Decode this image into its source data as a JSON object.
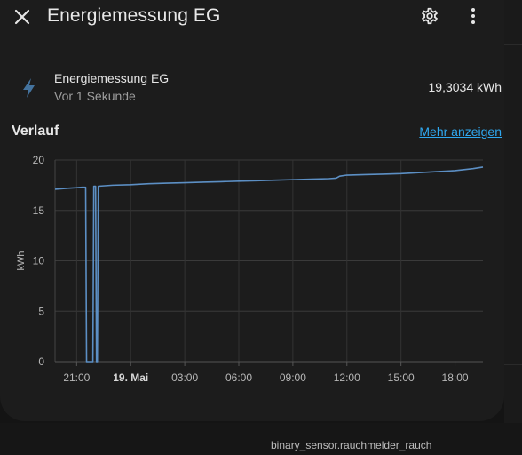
{
  "dialog": {
    "title": "Energiemessung EG",
    "icons": {
      "close": "close-icon",
      "settings": "gear-icon",
      "menu": "more-vertical-icon"
    }
  },
  "entity": {
    "icon": "lightning-bolt-icon",
    "name": "Energiemessung EG",
    "last_changed": "Vor 1 Sekunde",
    "value": "19,3034 kWh"
  },
  "history": {
    "title": "Verlauf",
    "more_link": "Mehr anzeigen"
  },
  "background": {
    "entity_id": "binary_sensor.rauchmelder_rauch"
  },
  "chart_data": {
    "type": "line",
    "ylabel": "kWh",
    "ylim": [
      0,
      20
    ],
    "yticks": [
      "0",
      "5",
      "10",
      "15",
      "20"
    ],
    "xticks": [
      {
        "label": "21:00",
        "h": 21,
        "bold": false
      },
      {
        "label": "19. Mai",
        "h": 24,
        "bold": true
      },
      {
        "label": "03:00",
        "h": 27,
        "bold": false
      },
      {
        "label": "06:00",
        "h": 30,
        "bold": false
      },
      {
        "label": "09:00",
        "h": 33,
        "bold": false
      },
      {
        "label": "12:00",
        "h": 36,
        "bold": false
      },
      {
        "label": "15:00",
        "h": 39,
        "bold": false
      },
      {
        "label": "18:00",
        "h": 42,
        "bold": false
      }
    ],
    "xlim": [
      19.8,
      43.55
    ],
    "line_color": "#5c8fc4",
    "series": [
      {
        "points": [
          [
            19.8,
            17.1
          ],
          [
            20.5,
            17.2
          ],
          [
            21.0,
            17.25
          ],
          [
            21.3,
            17.3
          ],
          [
            21.5,
            17.3
          ],
          [
            21.55,
            0.0
          ],
          [
            21.9,
            0.0
          ],
          [
            21.95,
            17.4
          ],
          [
            22.05,
            17.4
          ],
          [
            22.1,
            0.0
          ],
          [
            22.15,
            0.0
          ],
          [
            22.2,
            17.4
          ],
          [
            23.0,
            17.5
          ],
          [
            24.0,
            17.55
          ],
          [
            25.0,
            17.65
          ],
          [
            26.0,
            17.7
          ],
          [
            27.0,
            17.75
          ],
          [
            28.0,
            17.8
          ],
          [
            29.0,
            17.85
          ],
          [
            30.0,
            17.9
          ],
          [
            31.0,
            17.95
          ],
          [
            32.0,
            18.0
          ],
          [
            33.0,
            18.05
          ],
          [
            34.0,
            18.1
          ],
          [
            35.0,
            18.15
          ],
          [
            35.4,
            18.2
          ],
          [
            35.6,
            18.4
          ],
          [
            36.0,
            18.5
          ],
          [
            37.0,
            18.55
          ],
          [
            38.0,
            18.6
          ],
          [
            39.0,
            18.65
          ],
          [
            40.0,
            18.75
          ],
          [
            41.0,
            18.85
          ],
          [
            42.0,
            18.95
          ],
          [
            43.0,
            19.15
          ],
          [
            43.55,
            19.3
          ]
        ]
      }
    ]
  }
}
